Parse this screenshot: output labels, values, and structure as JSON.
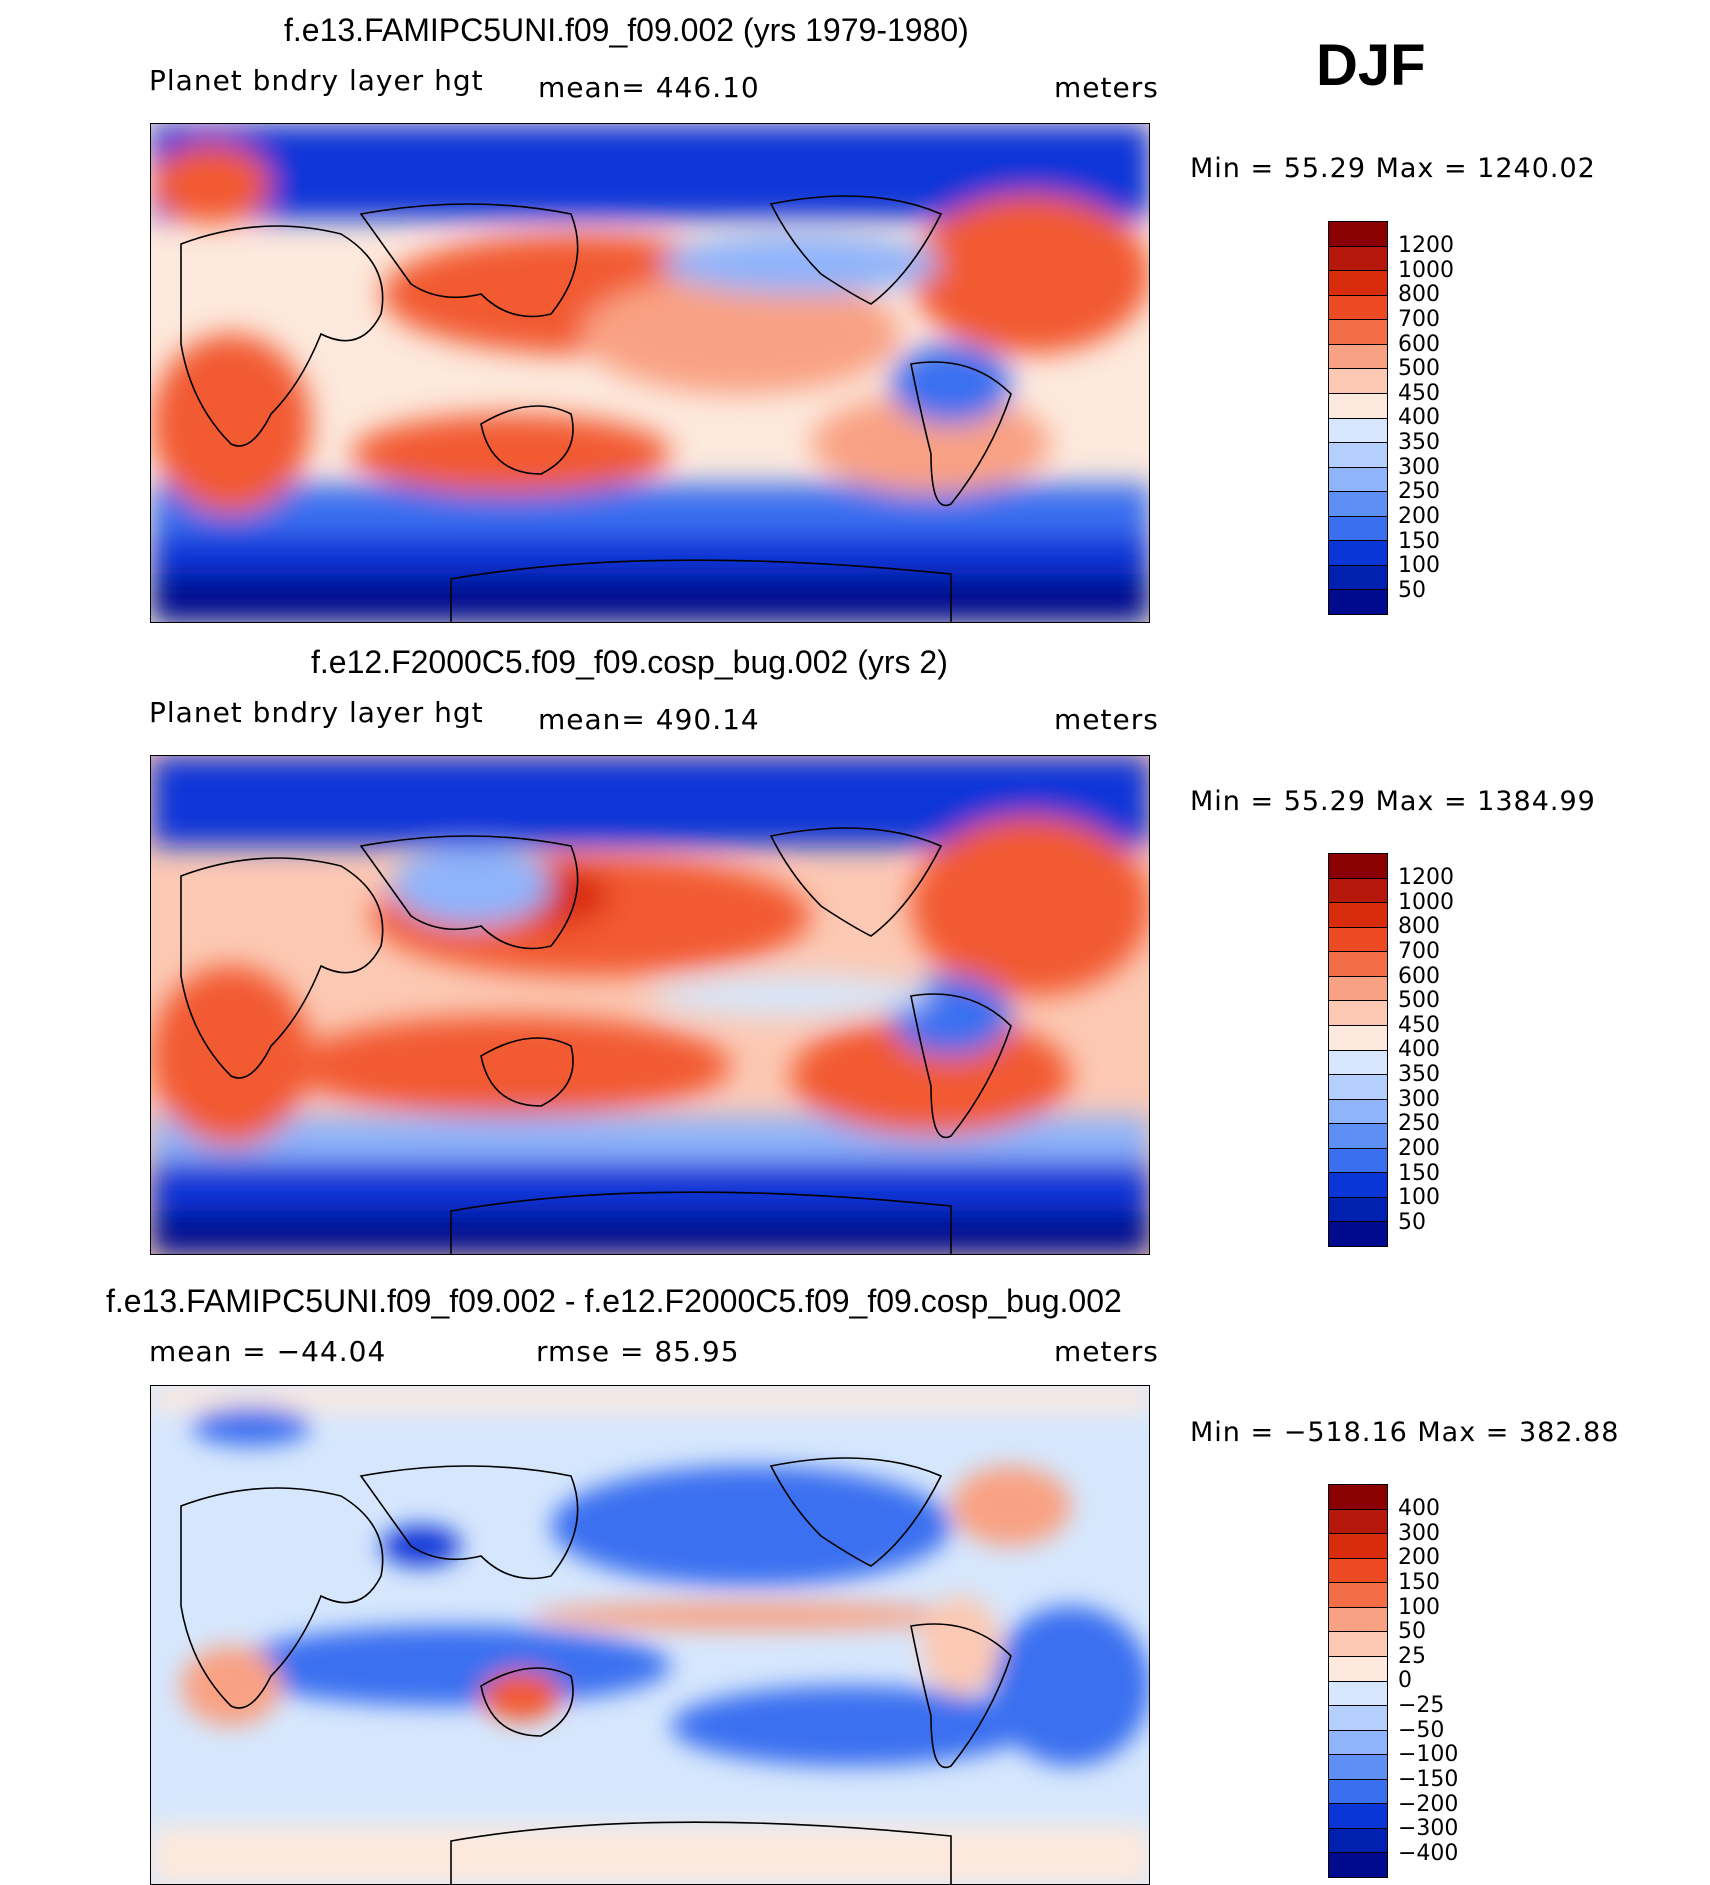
{
  "season": "DJF",
  "palette": {
    "deep_blue": "#000a8f",
    "blue": "#0a36d8",
    "mid_blue": "#3a6ff0",
    "light_blue": "#8fb4fb",
    "pale_blue": "#d6e7fd",
    "cream": "#fde9dd",
    "salmon": "#f9a183",
    "orange_red": "#f25a33",
    "red": "#d92c0c",
    "dark_red": "#8b0000",
    "coastline": "#000000"
  },
  "panels": [
    {
      "title": "f.e13.FAMIPC5UNI.f09_f09.002 (yrs 1979-1980)",
      "left_label": "Planet bndry layer hgt",
      "center_label": "mean=  446.10",
      "units": "meters",
      "minmax": "Min =   55.29  Max  =  1240.02",
      "colorbar_labels": [
        "1200",
        "1000",
        "800",
        "700",
        "600",
        "500",
        "450",
        "400",
        "350",
        "300",
        "250",
        "200",
        "150",
        "100",
        "50"
      ]
    },
    {
      "title": "f.e12.F2000C5.f09_f09.cosp_bug.002 (yrs 2)",
      "left_label": "Planet bndry layer hgt",
      "center_label": "mean=  490.14",
      "units": "meters",
      "minmax": "Min =   55.29  Max  =  1384.99",
      "colorbar_labels": [
        "1200",
        "1000",
        "800",
        "700",
        "600",
        "500",
        "450",
        "400",
        "350",
        "300",
        "250",
        "200",
        "150",
        "100",
        "50"
      ]
    },
    {
      "title": "f.e13.FAMIPC5UNI.f09_f09.002 - f.e12.F2000C5.f09_f09.cosp_bug.002",
      "left_label": "mean  =  −44.04",
      "center_label": "rmse  =    85.95",
      "units": "meters",
      "minmax": "Min  =  −518.16  Max  =  382.88",
      "colorbar_labels": [
        "400",
        "300",
        "200",
        "150",
        "100",
        "50",
        "25",
        "0",
        "−25",
        "−50",
        "−100",
        "−150",
        "−200",
        "−300",
        "−400"
      ]
    }
  ]
}
